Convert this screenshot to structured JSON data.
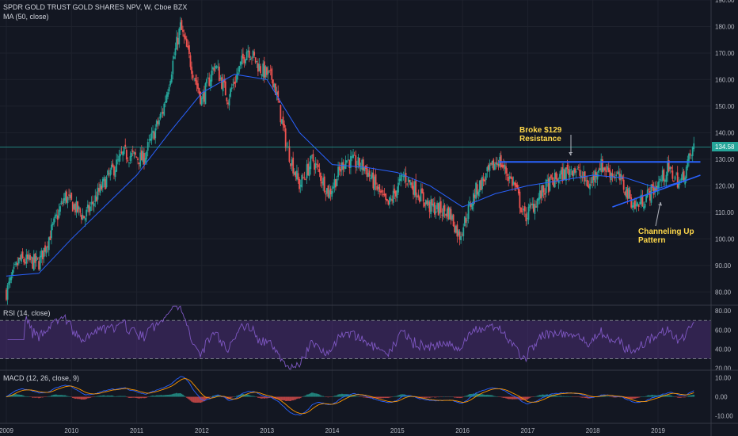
{
  "header": {
    "symbol": "SPDR GOLD TRUST GOLD SHARES NPV, W, Cboe BZX",
    "ma_label": "MA (50, close)"
  },
  "rsi_panel": {
    "label": "RSI (14, close)"
  },
  "macd_panel": {
    "label": "MACD (12, 26, close, 9)"
  },
  "price_badge": "134.58",
  "annotations": {
    "broke_line1": "Broke $129",
    "broke_line2": "Resistance",
    "channel_line1": "Channeling Up",
    "channel_line2": "Pattern"
  },
  "colors": {
    "background": "#131722",
    "up": "#26a69a",
    "down": "#ef5350",
    "ma": "#2962ff",
    "rsi": "#7e57c2",
    "rsi_band": "#4a2e74",
    "macd": "#2962ff",
    "signal": "#ff9800",
    "resistance": "#2962ff",
    "price_line": "#26a69a",
    "annotation_text": "#ffd84a"
  },
  "chart_data": {
    "type": "candlestick",
    "price_axis": {
      "ticks": [
        80,
        90,
        100,
        110,
        120,
        130,
        140,
        150,
        160,
        170,
        180,
        190
      ],
      "ylim": [
        75,
        190
      ]
    },
    "time_axis": {
      "ticks": [
        "2009",
        "2010",
        "2011",
        "2012",
        "2013",
        "2014",
        "2015",
        "2016",
        "2017",
        "2018",
        "2019"
      ]
    },
    "price_path": [
      {
        "t": 2009.0,
        "v": 80
      },
      {
        "t": 2009.2,
        "v": 92
      },
      {
        "t": 2009.5,
        "v": 91
      },
      {
        "t": 2009.9,
        "v": 116
      },
      {
        "t": 2010.2,
        "v": 108
      },
      {
        "t": 2010.5,
        "v": 121
      },
      {
        "t": 2010.8,
        "v": 132
      },
      {
        "t": 2011.1,
        "v": 130
      },
      {
        "t": 2011.4,
        "v": 148
      },
      {
        "t": 2011.67,
        "v": 180
      },
      {
        "t": 2011.9,
        "v": 160
      },
      {
        "t": 2012.0,
        "v": 152
      },
      {
        "t": 2012.2,
        "v": 166
      },
      {
        "t": 2012.4,
        "v": 153
      },
      {
        "t": 2012.7,
        "v": 172
      },
      {
        "t": 2012.9,
        "v": 164
      },
      {
        "t": 2013.1,
        "v": 160
      },
      {
        "t": 2013.3,
        "v": 135
      },
      {
        "t": 2013.5,
        "v": 120
      },
      {
        "t": 2013.7,
        "v": 130
      },
      {
        "t": 2013.95,
        "v": 117
      },
      {
        "t": 2014.2,
        "v": 130
      },
      {
        "t": 2014.5,
        "v": 127
      },
      {
        "t": 2014.85,
        "v": 112
      },
      {
        "t": 2015.1,
        "v": 124
      },
      {
        "t": 2015.5,
        "v": 112
      },
      {
        "t": 2015.8,
        "v": 110
      },
      {
        "t": 2015.95,
        "v": 101
      },
      {
        "t": 2016.2,
        "v": 118
      },
      {
        "t": 2016.55,
        "v": 130
      },
      {
        "t": 2016.8,
        "v": 120
      },
      {
        "t": 2016.95,
        "v": 108
      },
      {
        "t": 2017.3,
        "v": 120
      },
      {
        "t": 2017.7,
        "v": 127
      },
      {
        "t": 2017.95,
        "v": 120
      },
      {
        "t": 2018.1,
        "v": 128
      },
      {
        "t": 2018.4,
        "v": 123
      },
      {
        "t": 2018.65,
        "v": 112
      },
      {
        "t": 2018.95,
        "v": 119
      },
      {
        "t": 2019.15,
        "v": 126
      },
      {
        "t": 2019.35,
        "v": 121
      },
      {
        "t": 2019.45,
        "v": 128
      },
      {
        "t": 2019.55,
        "v": 134.58
      }
    ],
    "ma50_path": [
      {
        "t": 2009.0,
        "v": 86
      },
      {
        "t": 2009.5,
        "v": 87
      },
      {
        "t": 2010.0,
        "v": 100
      },
      {
        "t": 2010.5,
        "v": 112
      },
      {
        "t": 2011.0,
        "v": 124
      },
      {
        "t": 2011.5,
        "v": 140
      },
      {
        "t": 2012.0,
        "v": 155
      },
      {
        "t": 2012.5,
        "v": 162
      },
      {
        "t": 2013.0,
        "v": 160
      },
      {
        "t": 2013.5,
        "v": 140
      },
      {
        "t": 2014.0,
        "v": 128
      },
      {
        "t": 2014.5,
        "v": 127
      },
      {
        "t": 2015.0,
        "v": 125
      },
      {
        "t": 2015.5,
        "v": 120
      },
      {
        "t": 2016.0,
        "v": 112
      },
      {
        "t": 2016.5,
        "v": 117
      },
      {
        "t": 2017.0,
        "v": 120
      },
      {
        "t": 2017.5,
        "v": 122
      },
      {
        "t": 2018.0,
        "v": 124
      },
      {
        "t": 2018.5,
        "v": 123
      },
      {
        "t": 2019.0,
        "v": 119
      },
      {
        "t": 2019.55,
        "v": 123
      }
    ],
    "resistance_line": {
      "label": "Broke $129 Resistance",
      "value": 129,
      "from_t": 2016.55,
      "to_t": 2019.65
    },
    "channel_line": {
      "from": {
        "t": 2018.3,
        "v": 112
      },
      "to": {
        "t": 2019.65,
        "v": 124
      }
    },
    "current_price": 134.58,
    "rsi": {
      "ticks": [
        20,
        40,
        60,
        80
      ],
      "ylim": [
        18,
        86
      ],
      "overbought": 70,
      "oversold": 30
    },
    "macd": {
      "ticks": [
        -10,
        0,
        10
      ],
      "ylim": [
        -14,
        14
      ]
    }
  }
}
